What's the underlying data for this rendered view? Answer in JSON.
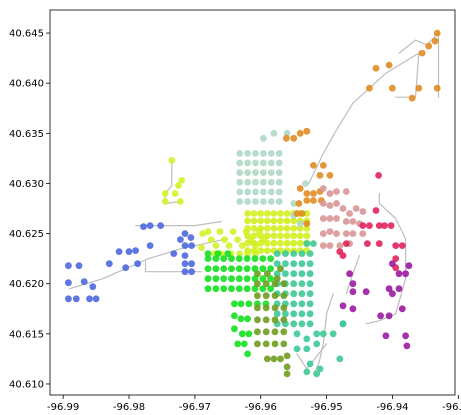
{
  "chart_data": {
    "type": "scatter",
    "title": "",
    "xlabel": "",
    "ylabel": "",
    "xlim": [
      -96.992,
      -96.9305
    ],
    "ylim": [
      40.6089,
      40.6473
    ],
    "grid": false,
    "legend": "none",
    "xticks": [
      -96.99,
      -96.98,
      -96.97,
      -96.96,
      -96.95,
      -96.94,
      -96.93
    ],
    "xtick_labels": [
      "-96.99",
      "-96.98",
      "-96.97",
      "-96.96",
      "-96.95",
      "-96.94",
      "-96.93"
    ],
    "yticks": [
      40.61,
      40.615,
      40.62,
      40.625,
      40.63,
      40.635,
      40.64,
      40.645
    ],
    "ytick_labels": [
      "40.610",
      "40.615",
      "40.620",
      "40.625",
      "40.630",
      "40.635",
      "40.640",
      "40.645"
    ],
    "road_color": "#bdbdbd",
    "roads": [
      {
        "x": [
          -96.989,
          -96.984,
          -96.977,
          -96.972,
          -96.965
        ],
        "y": [
          40.6195,
          40.6205,
          40.6225,
          40.6235,
          40.6245
        ]
      },
      {
        "x": [
          -96.9775,
          -96.9775,
          -96.972,
          -96.969
        ],
        "y": [
          40.6222,
          40.6212,
          40.6212,
          40.6212
        ]
      },
      {
        "x": [
          -96.979,
          -96.97,
          -96.966
        ],
        "y": [
          40.6258,
          40.6258,
          40.6262
        ]
      },
      {
        "x": [
          -96.9735,
          -96.9735,
          -96.9745,
          -96.9745,
          -96.9722
        ],
        "y": [
          40.6323,
          40.6298,
          40.629,
          40.628,
          40.6282
        ]
      },
      {
        "x": [
          -96.9527,
          -96.9505,
          -96.9488,
          -96.946,
          -96.941,
          -96.936
        ],
        "y": [
          40.63,
          40.633,
          40.635,
          40.638,
          40.641,
          40.643
        ]
      },
      {
        "x": [
          -96.936,
          -96.9365,
          -96.9395
        ],
        "y": [
          40.643,
          40.6386,
          40.6386
        ]
      },
      {
        "x": [
          -96.939,
          -96.9365,
          -96.9348,
          -96.933,
          -96.933
        ],
        "y": [
          40.643,
          40.6443,
          40.6438,
          40.645,
          40.6386
        ]
      },
      {
        "x": [
          -96.942,
          -96.942,
          -96.9395,
          -96.938,
          -96.938
        ],
        "y": [
          40.629,
          40.628,
          40.6265,
          40.6245,
          40.6205
        ]
      },
      {
        "x": [
          -96.938,
          -96.9395,
          -96.942,
          -96.944
        ],
        "y": [
          40.6205,
          40.617,
          40.6163,
          40.616
        ]
      },
      {
        "x": [
          -96.949,
          -96.95,
          -96.9505,
          -96.9512,
          -96.952
        ],
        "y": [
          40.619,
          40.617,
          40.614,
          40.612,
          40.611
        ]
      },
      {
        "x": [
          -96.9545,
          -96.953,
          -96.95
        ],
        "y": [
          40.613,
          40.6115,
          40.614
        ]
      },
      {
        "x": [
          -96.945,
          -96.946,
          -96.947
        ],
        "y": [
          40.6228,
          40.621,
          40.619
        ]
      }
    ],
    "series": [
      {
        "color": "#4e69de",
        "points": [
          [
            -96.9892,
            40.6218
          ],
          [
            -96.9876,
            40.6218
          ],
          [
            -96.9892,
            40.6201
          ],
          [
            -96.9892,
            40.6185
          ],
          [
            -96.988,
            40.6185
          ],
          [
            -96.986,
            40.6185
          ],
          [
            -96.985,
            40.6185
          ],
          [
            -96.9855,
            40.6197
          ],
          [
            -96.9868,
            40.6202
          ],
          [
            -96.983,
            40.622
          ],
          [
            -96.9815,
            40.6232
          ],
          [
            -96.98,
            40.6232
          ],
          [
            -96.9805,
            40.6216
          ],
          [
            -96.979,
            40.6233
          ],
          [
            -96.9787,
            40.622
          ],
          [
            -96.9768,
            40.6238
          ],
          [
            -96.9778,
            40.6257
          ],
          [
            -96.9768,
            40.6258
          ],
          [
            -96.9752,
            40.6258
          ],
          [
            -96.9732,
            40.623
          ],
          [
            -96.9715,
            40.6238
          ],
          [
            -96.9715,
            40.6228
          ],
          [
            -96.9705,
            40.6238
          ],
          [
            -96.9715,
            40.622
          ],
          [
            -96.9705,
            40.622
          ],
          [
            -96.9715,
            40.6212
          ],
          [
            -96.9705,
            40.6212
          ],
          [
            -96.9722,
            40.6244
          ],
          [
            -96.9706,
            40.6246
          ],
          [
            -96.9715,
            40.625
          ]
        ]
      },
      {
        "color": "#d4f22a",
        "points": [
          [
            -96.9735,
            40.6323
          ],
          [
            -96.9745,
            40.629
          ],
          [
            -96.9745,
            40.6282
          ],
          [
            -96.973,
            40.629
          ],
          [
            -96.9722,
            40.6282
          ],
          [
            -96.9725,
            40.6298
          ],
          [
            -96.972,
            40.6303
          ],
          [
            -96.9688,
            40.625
          ],
          [
            -96.969,
            40.6236
          ],
          [
            -96.968,
            40.6252
          ],
          [
            -96.9675,
            40.6244
          ],
          [
            -96.9668,
            40.6238
          ],
          [
            -96.9662,
            40.6252
          ],
          [
            -96.9655,
            40.6244
          ],
          [
            -96.9648,
            40.6238
          ],
          [
            -96.9642,
            40.6252
          ],
          [
            -96.9635,
            40.6244
          ],
          [
            -96.9628,
            40.6238
          ],
          [
            -96.9622,
            40.6252
          ],
          [
            -96.9615,
            40.6244
          ],
          [
            -96.9608,
            40.6238
          ],
          [
            -96.9608,
            40.623
          ],
          [
            -96.962,
            40.623
          ],
          [
            -96.9632,
            40.623
          ],
          [
            -96.9645,
            40.623
          ],
          [
            -96.966,
            40.623
          ],
          [
            -96.967,
            40.623
          ],
          [
            -96.9602,
            40.6252
          ],
          [
            -96.9595,
            40.6244
          ]
        ]
      },
      {
        "color": "#d2ee1e",
        "grid": true,
        "x0": -96.962,
        "x1": -96.953,
        "y0": 40.6233,
        "y1": 40.627,
        "nx": 10,
        "ny": 6
      },
      {
        "color": "#afd8c5",
        "grid": true,
        "x0": -96.9632,
        "x1": -96.9572,
        "y0": 40.6282,
        "y1": 40.633,
        "nx": 6,
        "ny": 6
      },
      {
        "color": "#afd8c5",
        "points": [
          [
            -96.9596,
            40.6345
          ],
          [
            -96.958,
            40.635
          ],
          [
            -96.956,
            40.635
          ],
          [
            -96.9532,
            40.63
          ],
          [
            -96.955,
            40.628
          ],
          [
            -96.955,
            40.6268
          ],
          [
            -96.954,
            40.626
          ]
        ]
      },
      {
        "color": "#e08c20",
        "points": [
          [
            -96.9561,
            40.6345
          ],
          [
            -96.955,
            40.6345
          ],
          [
            -96.954,
            40.635
          ],
          [
            -96.953,
            40.6352
          ],
          [
            -96.952,
            40.6318
          ],
          [
            -96.9505,
            40.6318
          ],
          [
            -96.951,
            40.6308
          ],
          [
            -96.9495,
            40.6308
          ],
          [
            -96.954,
            40.6295
          ],
          [
            -96.953,
            40.629
          ],
          [
            -96.952,
            40.629
          ],
          [
            -96.951,
            40.6292
          ],
          [
            -96.9542,
            40.628
          ],
          [
            -96.953,
            40.6283
          ],
          [
            -96.952,
            40.6283
          ],
          [
            -96.9508,
            40.6283
          ],
          [
            -96.9545,
            40.627
          ],
          [
            -96.9537,
            40.627
          ],
          [
            -96.953,
            40.626
          ],
          [
            -96.9435,
            40.6395
          ],
          [
            -96.9425,
            40.6415
          ],
          [
            -96.9405,
            40.6418
          ],
          [
            -96.94,
            40.6395
          ],
          [
            -96.936,
            40.6395
          ],
          [
            -96.9355,
            40.643
          ],
          [
            -96.9345,
            40.6437
          ],
          [
            -96.9335,
            40.6442
          ],
          [
            -96.9332,
            40.645
          ],
          [
            -96.9332,
            40.6395
          ],
          [
            -96.937,
            40.6385
          ]
        ]
      },
      {
        "color": "#d99697",
        "points": [
          [
            -96.9505,
            40.6295
          ],
          [
            -96.9495,
            40.629
          ],
          [
            -96.9485,
            40.6292
          ],
          [
            -96.947,
            40.6292
          ],
          [
            -96.9505,
            40.628
          ],
          [
            -96.9495,
            40.6278
          ],
          [
            -96.9485,
            40.628
          ],
          [
            -96.9475,
            40.6275
          ],
          [
            -96.9465,
            40.627
          ],
          [
            -96.9455,
            40.6275
          ],
          [
            -96.9445,
            40.6272
          ],
          [
            -96.9505,
            40.6265
          ],
          [
            -96.9495,
            40.6265
          ],
          [
            -96.9485,
            40.6265
          ],
          [
            -96.947,
            40.6262
          ],
          [
            -96.946,
            40.6262
          ],
          [
            -96.945,
            40.626
          ],
          [
            -96.9505,
            40.625
          ],
          [
            -96.9495,
            40.6252
          ],
          [
            -96.9485,
            40.625
          ],
          [
            -96.947,
            40.625
          ],
          [
            -96.946,
            40.625
          ],
          [
            -96.9445,
            40.625
          ],
          [
            -96.948,
            40.6238
          ],
          [
            -96.9465,
            40.624
          ],
          [
            -96.9505,
            40.6238
          ],
          [
            -96.9495,
            40.6238
          ]
        ]
      },
      {
        "color": "#e0245c",
        "points": [
          [
            -96.9421,
            40.6308
          ],
          [
            -96.9425,
            40.6273
          ],
          [
            -96.942,
            40.6258
          ],
          [
            -96.9412,
            40.6258
          ],
          [
            -96.9402,
            40.6258
          ],
          [
            -96.9435,
            40.6258
          ],
          [
            -96.9445,
            40.6258
          ],
          [
            -96.947,
            40.624
          ],
          [
            -96.948,
            40.6232
          ],
          [
            -96.9475,
            40.6228
          ],
          [
            -96.9438,
            40.624
          ],
          [
            -96.942,
            40.624
          ],
          [
            -96.9395,
            40.6238
          ],
          [
            -96.9385,
            40.6238
          ],
          [
            -96.9395,
            40.6225
          ],
          [
            -96.9395,
            40.6216
          ]
        ]
      },
      {
        "color": "#9c1aa0",
        "points": [
          [
            -96.9465,
            40.621
          ],
          [
            -96.946,
            40.62
          ],
          [
            -96.946,
            40.6192
          ],
          [
            -96.944,
            40.6192
          ],
          [
            -96.94,
            40.622
          ],
          [
            -96.939,
            40.621
          ],
          [
            -96.938,
            40.621
          ],
          [
            -96.9375,
            40.6218
          ],
          [
            -96.9405,
            40.6195
          ],
          [
            -96.94,
            40.619
          ],
          [
            -96.939,
            40.6195
          ],
          [
            -96.9385,
            40.6175
          ],
          [
            -96.9405,
            40.6168
          ],
          [
            -96.9418,
            40.6168
          ],
          [
            -96.946,
            40.6175
          ],
          [
            -96.9475,
            40.6178
          ],
          [
            -96.941,
            40.6148
          ],
          [
            -96.938,
            40.6148
          ],
          [
            -96.9378,
            40.6138
          ]
        ]
      },
      {
        "color": "#3ec996",
        "grid": true,
        "x0": -96.9575,
        "x1": -96.9525,
        "y0": 40.616,
        "y1": 40.623,
        "nx": 5,
        "ny": 8
      },
      {
        "color": "#3ec996",
        "points": [
          [
            -96.953,
            40.624
          ],
          [
            -96.952,
            40.624
          ],
          [
            -96.9545,
            40.615
          ],
          [
            -96.953,
            40.6145
          ],
          [
            -96.9515,
            40.615
          ],
          [
            -96.9545,
            40.6135
          ],
          [
            -96.953,
            40.6135
          ],
          [
            -96.949,
            40.615
          ],
          [
            -96.9475,
            40.616
          ],
          [
            -96.9505,
            40.615
          ],
          [
            -96.9515,
            40.614
          ],
          [
            -96.9525,
            40.612
          ],
          [
            -96.953,
            40.6112
          ],
          [
            -96.9515,
            40.611
          ],
          [
            -96.951,
            40.6115
          ],
          [
            -96.948,
            40.6125
          ],
          [
            -96.9475,
            40.616
          ]
        ]
      },
      {
        "color": "#14e01e",
        "grid": true,
        "x0": -96.968,
        "x1": -96.9585,
        "y0": 40.6195,
        "y1": 40.6225,
        "nx": 9,
        "ny": 4
      },
      {
        "color": "#14e01e",
        "points": [
          [
            -96.968,
            40.623
          ],
          [
            -96.9665,
            40.623
          ],
          [
            -96.965,
            40.623
          ],
          [
            -96.964,
            40.618
          ],
          [
            -96.963,
            40.618
          ],
          [
            -96.9618,
            40.618
          ],
          [
            -96.9605,
            40.618
          ],
          [
            -96.9592,
            40.618
          ],
          [
            -96.964,
            40.6168
          ],
          [
            -96.963,
            40.6165
          ],
          [
            -96.962,
            40.6165
          ],
          [
            -96.964,
            40.6155
          ],
          [
            -96.9628,
            40.615
          ],
          [
            -96.9618,
            40.615
          ],
          [
            -96.9635,
            40.614
          ],
          [
            -96.9625,
            40.614
          ],
          [
            -96.962,
            40.613
          ]
        ]
      },
      {
        "color": "#6f9c1e",
        "grid": true,
        "x0": -96.9605,
        "x1": -96.9565,
        "y0": 40.614,
        "y1": 40.62,
        "nx": 4,
        "ny": 6
      },
      {
        "color": "#6f9c1e",
        "points": [
          [
            -96.959,
            40.6125
          ],
          [
            -96.958,
            40.6125
          ],
          [
            -96.957,
            40.6125
          ],
          [
            -96.956,
            40.6128
          ],
          [
            -96.956,
            40.6117
          ],
          [
            -96.956,
            40.611
          ],
          [
            -96.9575,
            40.6205
          ],
          [
            -96.959,
            40.621
          ],
          [
            -96.9605,
            40.621
          ],
          [
            -96.957,
            40.6215
          ]
        ]
      }
    ]
  }
}
